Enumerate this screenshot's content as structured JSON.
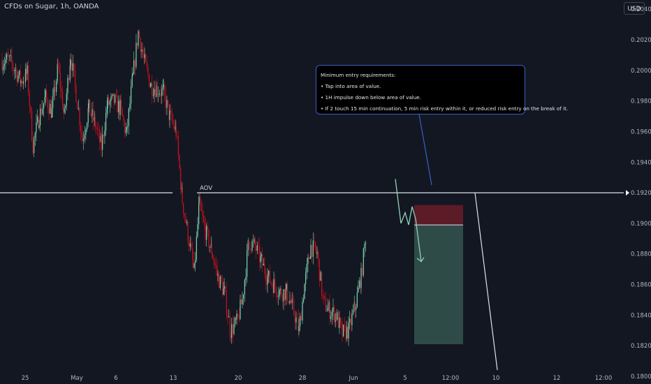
{
  "header": {
    "title": "CFDs on Sugar, 1h, OANDA",
    "currency": "USD"
  },
  "callout": {
    "lines": [
      "Minimum entry requirements:",
      "• Tap into area of value.",
      "• 1H impulse down below area of value.",
      "• If 2 touch 15 min continuation, 5 min risk entry within it, or reduced risk entry on the break of it."
    ]
  },
  "chart_data": {
    "type": "candlestick",
    "symbol": "CFDs on Sugar",
    "interval": "1h",
    "source": "OANDA",
    "y_axis_labels": [
      "0.20400",
      "0.20200",
      "0.20000",
      "0.19800",
      "0.19600",
      "0.19400",
      "0.19200",
      "0.19000",
      "0.18800",
      "0.18600",
      "0.18400",
      "0.18200",
      "0.18000"
    ],
    "ylim": [
      0.1795,
      0.2046
    ],
    "x_axis_labels": [
      "25",
      "May",
      "6",
      "13",
      "20",
      "28",
      "Jun",
      "5",
      "12:00",
      "10",
      "12",
      "12:00"
    ],
    "annotations": {
      "aov_label": "AOV",
      "aov_level": 0.192,
      "short_position": {
        "entry": 0.1899,
        "stop": 0.1912,
        "target": 0.1821
      }
    },
    "colors": {
      "up": "#7fd6b4",
      "down": "#d0101d",
      "background": "#131722"
    },
    "series": [
      {
        "path": [
          [
            0,
            0.2006
          ],
          [
            9,
            0.2007
          ],
          [
            18,
            0.2001
          ],
          [
            27,
            0.1993
          ],
          [
            36,
            0.1998
          ],
          [
            44,
            0.1951
          ],
          [
            53,
            0.197
          ],
          [
            62,
            0.1982
          ],
          [
            71,
            0.1973
          ],
          [
            80,
            0.2002
          ],
          [
            89,
            0.197
          ],
          [
            98,
            0.201
          ],
          [
            106,
            0.1985
          ],
          [
            115,
            0.1955
          ],
          [
            124,
            0.1975
          ],
          [
            133,
            0.1965
          ],
          [
            142,
            0.195
          ],
          [
            151,
            0.1978
          ],
          [
            160,
            0.198
          ],
          [
            169,
            0.1975
          ],
          [
            178,
            0.1958
          ],
          [
            187,
            0.1995
          ],
          [
            195,
            0.2025
          ],
          [
            204,
            0.2005
          ],
          [
            213,
            0.199
          ],
          [
            222,
            0.1988
          ],
          [
            231,
            0.1985
          ],
          [
            240,
            0.197
          ],
          [
            249,
            0.196
          ],
          [
            258,
            0.1915
          ],
          [
            266,
            0.1893
          ],
          [
            275,
            0.1868
          ],
          [
            282,
            0.1912
          ],
          [
            291,
            0.1895
          ],
          [
            300,
            0.1882
          ],
          [
            309,
            0.1865
          ],
          [
            318,
            0.1855
          ],
          [
            327,
            0.183
          ],
          [
            336,
            0.1835
          ],
          [
            344,
            0.185
          ],
          [
            353,
            0.1888
          ],
          [
            362,
            0.1885
          ],
          [
            371,
            0.1875
          ],
          [
            380,
            0.1865
          ],
          [
            389,
            0.186
          ],
          [
            398,
            0.1855
          ],
          [
            407,
            0.1855
          ],
          [
            416,
            0.1845
          ],
          [
            425,
            0.183
          ],
          [
            433,
            0.186
          ],
          [
            442,
            0.1885
          ],
          [
            451,
            0.188
          ],
          [
            460,
            0.1848
          ],
          [
            469,
            0.1843
          ],
          [
            478,
            0.184
          ],
          [
            487,
            0.1828
          ],
          [
            496,
            0.183
          ],
          [
            505,
            0.1845
          ],
          [
            514,
            0.1865
          ],
          [
            521,
            0.1893
          ]
        ]
      }
    ]
  }
}
